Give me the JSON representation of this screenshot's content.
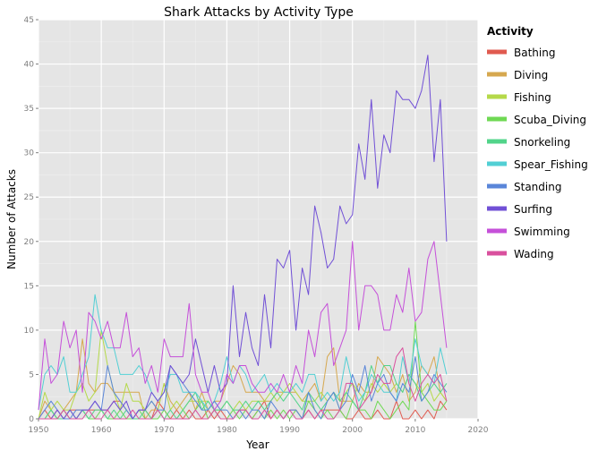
{
  "chart_data": {
    "type": "line",
    "title": "Shark Attacks by Activity Type",
    "xlabel": "Year",
    "ylabel": "Number of Attacks",
    "xlim": [
      1950,
      2020
    ],
    "ylim": [
      0,
      45
    ],
    "x_ticks": [
      1950,
      1960,
      1970,
      1980,
      1990,
      2000,
      2010,
      2020
    ],
    "y_ticks": [
      0,
      5,
      10,
      15,
      20,
      25,
      30,
      35,
      40,
      45
    ],
    "grid": true,
    "legend": {
      "title": "Activity",
      "placement": "right"
    },
    "x": [
      1950,
      1951,
      1952,
      1953,
      1954,
      1955,
      1956,
      1957,
      1958,
      1959,
      1960,
      1961,
      1962,
      1963,
      1964,
      1965,
      1966,
      1967,
      1968,
      1969,
      1970,
      1971,
      1972,
      1973,
      1974,
      1975,
      1976,
      1977,
      1978,
      1979,
      1980,
      1981,
      1982,
      1983,
      1984,
      1985,
      1986,
      1987,
      1988,
      1989,
      1990,
      1991,
      1992,
      1993,
      1994,
      1995,
      1996,
      1997,
      1998,
      1999,
      2000,
      2001,
      2002,
      2003,
      2004,
      2005,
      2006,
      2007,
      2008,
      2009,
      2010,
      2011,
      2012,
      2013,
      2014,
      2015
    ],
    "series": [
      {
        "name": "Bathing",
        "color": "#e05a4f",
        "values": [
          0,
          1,
          0,
          1,
          0,
          1,
          1,
          1,
          1,
          1,
          1,
          1,
          2,
          2,
          1,
          0,
          1,
          1,
          0,
          2,
          1,
          0,
          1,
          0,
          1,
          0,
          0,
          1,
          0,
          1,
          0,
          0,
          1,
          1,
          0,
          1,
          2,
          0,
          1,
          0,
          1,
          1,
          0,
          1,
          0,
          1,
          1,
          1,
          1,
          0,
          0,
          1,
          0,
          0,
          1,
          0,
          0,
          2,
          0,
          0,
          1,
          0,
          1,
          0,
          2,
          1
        ]
      },
      {
        "name": "Diving",
        "color": "#d6a84f",
        "values": [
          0,
          2,
          1,
          0,
          1,
          2,
          3,
          9,
          4,
          3,
          4,
          4,
          3,
          3,
          3,
          3,
          3,
          0,
          1,
          1,
          4,
          2,
          1,
          2,
          3,
          1,
          3,
          1,
          2,
          2,
          4,
          6,
          5,
          3,
          3,
          3,
          2,
          2,
          3,
          3,
          3,
          3,
          2,
          3,
          4,
          2,
          7,
          8,
          2,
          2,
          2,
          4,
          3,
          3,
          7,
          6,
          5,
          3,
          5,
          2,
          3,
          6,
          5,
          7,
          3,
          2
        ]
      },
      {
        "name": "Fishing",
        "color": "#b5d94a",
        "values": [
          0,
          3,
          1,
          2,
          1,
          1,
          3,
          4,
          2,
          3,
          10,
          6,
          3,
          1,
          4,
          2,
          2,
          1,
          2,
          1,
          4,
          1,
          2,
          1,
          2,
          2,
          2,
          2,
          1,
          1,
          2,
          1,
          2,
          1,
          2,
          2,
          2,
          3,
          2,
          3,
          4,
          3,
          2,
          2,
          2,
          3,
          2,
          3,
          1,
          3,
          4,
          3,
          2,
          4,
          3,
          4,
          3,
          4,
          3,
          5,
          4,
          3,
          4,
          2,
          3,
          2
        ]
      },
      {
        "name": "Scuba_Diving",
        "color": "#6fd954",
        "values": [
          0,
          0,
          1,
          0,
          1,
          0,
          0,
          1,
          0,
          0,
          1,
          0,
          0,
          1,
          0,
          0,
          1,
          0,
          0,
          0,
          1,
          0,
          0,
          1,
          0,
          1,
          2,
          0,
          1,
          0,
          0,
          1,
          0,
          1,
          0,
          1,
          0,
          1,
          0,
          1,
          0,
          1,
          0,
          2,
          1,
          0,
          1,
          0,
          1,
          0,
          2,
          1,
          1,
          0,
          2,
          1,
          0,
          1,
          2,
          1,
          11,
          3,
          2,
          1,
          1,
          2
        ]
      },
      {
        "name": "Snorkeling",
        "color": "#52d48a",
        "values": [
          0,
          0,
          1,
          0,
          0,
          1,
          0,
          1,
          0,
          1,
          1,
          0,
          1,
          0,
          1,
          0,
          0,
          1,
          0,
          1,
          0,
          1,
          0,
          1,
          2,
          3,
          1,
          2,
          1,
          1,
          2,
          1,
          1,
          2,
          1,
          2,
          1,
          2,
          3,
          2,
          3,
          2,
          1,
          3,
          2,
          1,
          2,
          3,
          2,
          3,
          2,
          1,
          3,
          6,
          4,
          6,
          6,
          4,
          3,
          5,
          4,
          2,
          3,
          4,
          3,
          4
        ]
      },
      {
        "name": "Spear_Fishing",
        "color": "#52cfd4",
        "values": [
          1,
          5,
          6,
          5,
          7,
          3,
          3,
          5,
          7,
          14,
          10,
          8,
          8,
          5,
          5,
          5,
          6,
          5,
          3,
          2,
          3,
          5,
          5,
          3,
          3,
          3,
          2,
          1,
          2,
          4,
          7,
          4,
          6,
          5,
          3,
          4,
          5,
          3,
          4,
          3,
          3,
          4,
          3,
          5,
          5,
          2,
          3,
          2,
          3,
          7,
          4,
          2,
          3,
          5,
          4,
          3,
          3,
          2,
          7,
          4,
          9,
          6,
          5,
          4,
          8,
          5
        ]
      },
      {
        "name": "Standing",
        "color": "#5a86d9",
        "values": [
          0,
          1,
          2,
          1,
          0,
          0,
          1,
          1,
          1,
          2,
          1,
          6,
          3,
          2,
          1,
          0,
          1,
          1,
          2,
          1,
          1,
          6,
          5,
          4,
          3,
          2,
          1,
          1,
          2,
          1,
          1,
          0,
          1,
          0,
          1,
          1,
          0,
          2,
          1,
          0,
          1,
          1,
          0,
          3,
          1,
          0,
          2,
          3,
          1,
          2,
          5,
          3,
          6,
          2,
          4,
          5,
          3,
          2,
          4,
          3,
          7,
          2,
          3,
          5,
          4,
          3
        ]
      },
      {
        "name": "Surfing",
        "color": "#7150d6",
        "values": [
          0,
          0,
          0,
          1,
          0,
          1,
          0,
          1,
          1,
          2,
          1,
          1,
          2,
          1,
          2,
          0,
          1,
          1,
          3,
          2,
          3,
          6,
          5,
          4,
          5,
          9,
          6,
          3,
          6,
          3,
          4,
          15,
          7,
          12,
          8,
          6,
          14,
          8,
          18,
          17,
          19,
          10,
          17,
          14,
          24,
          21,
          17,
          18,
          24,
          22,
          23,
          31,
          27,
          36,
          26,
          32,
          30,
          37,
          36,
          36,
          35,
          37,
          41,
          29,
          36,
          20
        ]
      },
      {
        "name": "Swimming",
        "color": "#c550d9",
        "values": [
          1,
          9,
          4,
          5,
          11,
          8,
          10,
          3,
          12,
          11,
          9,
          11,
          8,
          8,
          12,
          7,
          8,
          4,
          6,
          3,
          9,
          7,
          7,
          7,
          13,
          5,
          3,
          3,
          1,
          2,
          5,
          4,
          6,
          6,
          4,
          3,
          3,
          4,
          3,
          5,
          3,
          6,
          4,
          10,
          7,
          12,
          13,
          6,
          8,
          10,
          20,
          10,
          15,
          15,
          14,
          10,
          10,
          14,
          12,
          17,
          11,
          12,
          18,
          20,
          14,
          8
        ]
      },
      {
        "name": "Wading",
        "color": "#d9509e",
        "values": [
          0,
          0,
          0,
          0,
          1,
          0,
          0,
          0,
          1,
          0,
          0,
          1,
          0,
          0,
          0,
          1,
          0,
          0,
          0,
          1,
          0,
          0,
          0,
          0,
          0,
          1,
          0,
          0,
          1,
          0,
          0,
          0,
          1,
          1,
          0,
          0,
          1,
          0,
          1,
          0,
          1,
          0,
          0,
          1,
          0,
          1,
          0,
          0,
          1,
          4,
          4,
          1,
          2,
          3,
          5,
          4,
          4,
          7,
          8,
          4,
          2,
          4,
          5,
          4,
          5,
          2
        ]
      }
    ]
  }
}
